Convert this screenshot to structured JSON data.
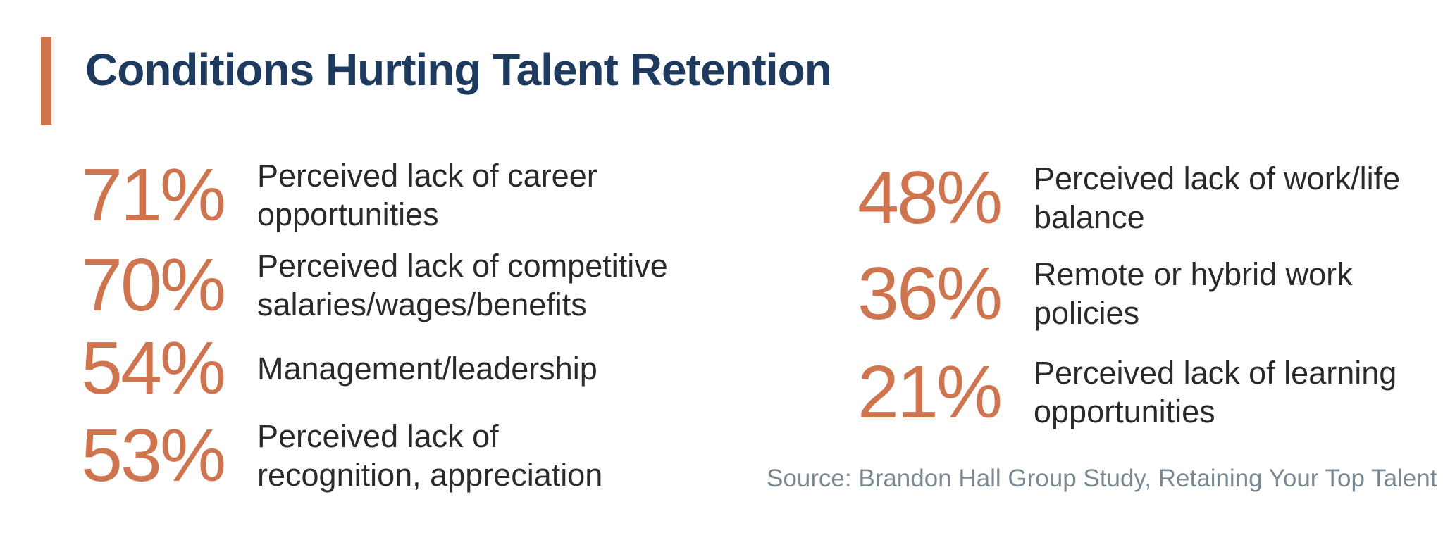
{
  "title": "Conditions Hurting Talent Retention",
  "source": "Source: Brandon Hall Group Study, Retaining Your Top Talent",
  "colors": {
    "accent_orange": "#CE744E",
    "title_navy": "#1F3A5F",
    "label_dark": "#2B2A29",
    "source_gray": "#7A8891",
    "background": "#FFFFFF"
  },
  "stats": [
    {
      "value": "71%",
      "label": "Perceived lack of career\nopportunities"
    },
    {
      "value": "70%",
      "label": "Perceived lack of competitive\nsalaries/wages/benefits"
    },
    {
      "value": "54%",
      "label": "Management/leadership"
    },
    {
      "value": "53%",
      "label": "Perceived lack of\nrecognition, appreciation"
    },
    {
      "value": "48%",
      "label": "Perceived lack of work/life\nbalance"
    },
    {
      "value": "36%",
      "label": "Remote or hybrid work\npolicies"
    },
    {
      "value": "21%",
      "label": "Perceived lack of learning\nopportunities"
    }
  ],
  "chart_data": {
    "type": "table",
    "title": "Conditions Hurting Talent Retention",
    "categories": [
      "Perceived lack of career opportunities",
      "Perceived lack of competitive salaries/wages/benefits",
      "Management/leadership",
      "Perceived lack of recognition, appreciation",
      "Perceived lack of work/life balance",
      "Remote or hybrid work policies",
      "Perceived lack of learning opportunities"
    ],
    "values": [
      71,
      70,
      54,
      53,
      48,
      36,
      21
    ],
    "unit": "%",
    "source": "Source: Brandon Hall Group Study, Retaining Your Top Talent",
    "layout": {
      "columns": 2,
      "left_column_items": [
        0,
        1,
        2,
        3
      ],
      "right_column_items": [
        4,
        5,
        6
      ],
      "legend": false,
      "grid": false
    }
  }
}
